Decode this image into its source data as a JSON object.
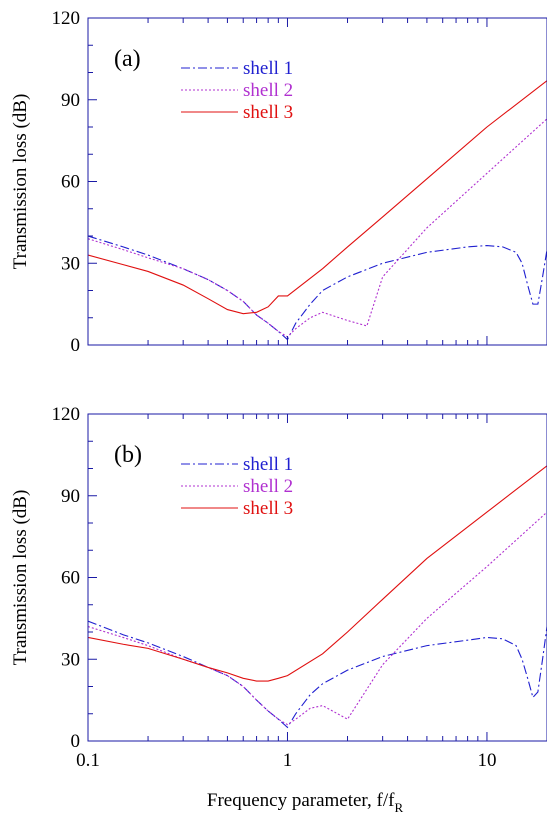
{
  "colors": {
    "axis": "#1a1aa6",
    "shell1": "#2020d0",
    "shell2": "#b030d0",
    "shell3": "#e01010"
  },
  "chart_data": [
    {
      "type": "line",
      "panel_label": "(a)",
      "xlabel": "",
      "ylabel": "Transmission loss (dB)",
      "xscale": "log",
      "xlim": [
        0.1,
        20
      ],
      "ylim": [
        0,
        120
      ],
      "x_ticks": [
        "0.1",
        "1",
        "10"
      ],
      "y_ticks": [
        "0",
        "30",
        "60",
        "90",
        "120"
      ],
      "legend_position": "top-left",
      "series": [
        {
          "name": "shell 1",
          "style": "dash-dot",
          "color": "#2020d0",
          "x": [
            0.1,
            0.15,
            0.2,
            0.3,
            0.4,
            0.5,
            0.6,
            0.7,
            0.8,
            0.9,
            1.0,
            1.1,
            1.3,
            1.5,
            2.0,
            3.0,
            5.0,
            8.0,
            10.0,
            12.0,
            14.0,
            15.0,
            16.0,
            17.0,
            18.0,
            19.0,
            20.0
          ],
          "y": [
            40,
            36,
            33,
            28,
            24,
            20,
            16,
            11,
            8,
            5,
            2,
            8,
            15,
            20,
            25,
            30,
            34,
            36,
            36.5,
            36,
            34,
            30,
            22,
            15,
            15,
            25,
            35
          ]
        },
        {
          "name": "shell 2",
          "style": "dotted",
          "color": "#b030d0",
          "x": [
            0.1,
            0.15,
            0.2,
            0.3,
            0.4,
            0.5,
            0.6,
            0.7,
            0.8,
            0.9,
            1.0,
            1.1,
            1.3,
            1.5,
            2.0,
            2.5,
            3.0,
            5.0,
            10.0,
            20.0
          ],
          "y": [
            39,
            35,
            32,
            28,
            24,
            20,
            16,
            11,
            8,
            5,
            3,
            6,
            10,
            12,
            9,
            7,
            25,
            43,
            63,
            83
          ]
        },
        {
          "name": "shell 3",
          "style": "solid",
          "color": "#e01010",
          "x": [
            0.1,
            0.15,
            0.2,
            0.3,
            0.4,
            0.5,
            0.6,
            0.7,
            0.8,
            0.9,
            1.0,
            1.5,
            2.0,
            3.0,
            5.0,
            10.0,
            20.0
          ],
          "y": [
            33,
            29.5,
            27,
            22,
            17,
            13,
            11.5,
            12,
            14,
            18,
            18,
            28,
            36,
            47,
            61,
            80,
            97
          ]
        }
      ]
    },
    {
      "type": "line",
      "panel_label": "(b)",
      "xlabel": "Frequency parameter, f/f",
      "xlabel_sub": "R",
      "ylabel": "Transmission loss (dB)",
      "xscale": "log",
      "xlim": [
        0.1,
        20
      ],
      "ylim": [
        0,
        120
      ],
      "x_ticks": [
        "0.1",
        "1",
        "10"
      ],
      "y_ticks": [
        "0",
        "30",
        "60",
        "90",
        "120"
      ],
      "legend_position": "top-left",
      "series": [
        {
          "name": "shell 1",
          "style": "dash-dot",
          "color": "#2020d0",
          "x": [
            0.1,
            0.15,
            0.2,
            0.3,
            0.4,
            0.5,
            0.6,
            0.7,
            0.8,
            0.9,
            1.0,
            1.1,
            1.3,
            1.5,
            2.0,
            3.0,
            5.0,
            8.0,
            10.0,
            12.0,
            14.0,
            15.0,
            16.0,
            17.0,
            18.0,
            19.0,
            20.0
          ],
          "y": [
            44,
            39,
            36,
            31,
            27,
            24,
            20,
            15,
            11,
            8,
            5,
            10,
            17,
            21,
            26,
            31,
            35,
            37,
            38,
            37.5,
            35,
            30,
            23,
            16,
            18,
            30,
            42
          ]
        },
        {
          "name": "shell 2",
          "style": "dotted",
          "color": "#b030d0",
          "x": [
            0.1,
            0.15,
            0.2,
            0.3,
            0.4,
            0.5,
            0.6,
            0.7,
            0.8,
            0.9,
            1.0,
            1.1,
            1.3,
            1.5,
            2.0,
            3.0,
            5.0,
            10.0,
            20.0
          ],
          "y": [
            42,
            38,
            35,
            30,
            27,
            24,
            20,
            15,
            11,
            8,
            6,
            8,
            12,
            13,
            8,
            28,
            45,
            64,
            84
          ]
        },
        {
          "name": "shell 3",
          "style": "solid",
          "color": "#e01010",
          "x": [
            0.1,
            0.15,
            0.2,
            0.3,
            0.4,
            0.5,
            0.6,
            0.7,
            0.8,
            0.9,
            1.0,
            1.5,
            2.0,
            3.0,
            5.0,
            10.0,
            20.0
          ],
          "y": [
            38,
            35.5,
            34,
            30,
            27,
            25,
            23,
            22,
            22,
            23,
            24,
            32,
            40,
            52,
            67,
            84,
            101
          ]
        }
      ]
    }
  ]
}
